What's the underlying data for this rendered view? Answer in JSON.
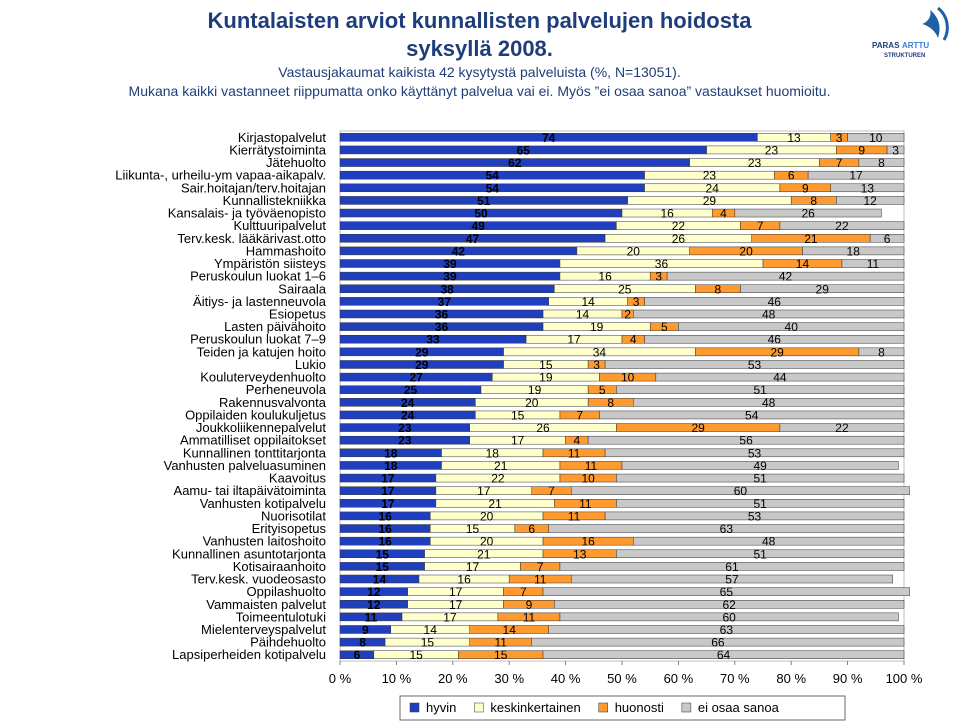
{
  "header": {
    "title_line1": "Kuntalaisten arviot kunnallisten palvelujen hoidosta",
    "title_line2": "syksyllä 2008.",
    "subtitle_line1": "Vastausjakaumat kaikista 42 kysytystä palveluista (%, N=13051).",
    "subtitle_line2": "Mukana kaikki vastanneet riippumatta onko käyttänyt palvelua vai ei. Myös ”ei osaa sanoa” vastaukset huomioitu."
  },
  "logo": {
    "text_paras": "PARAS",
    "text_arttu": "ARTTU",
    "text_rakenne": "STRUKTUREN"
  },
  "colors": {
    "hyvin": "#1f3fbf",
    "keskinkertainen": "#ffffcc",
    "huonosti": "#ff9a2e",
    "eos": "#c8c8c8"
  },
  "chart_data": {
    "type": "bar",
    "stacked": true,
    "orientation": "horizontal",
    "xlim": [
      0,
      100
    ],
    "x_ticks": [
      "0 %",
      "10 %",
      "20 %",
      "30 %",
      "40 %",
      "50 %",
      "60 %",
      "70 %",
      "80 %",
      "90 %",
      "100 %"
    ],
    "legend_position": "bottom",
    "categories": [
      "Kirjastopalvelut",
      "Kierrätystoiminta",
      "Jätehuolto",
      "Liikunta-, urheilu-ym vapaa-aikapalv.",
      "Sair.hoitajan/terv.hoitajan",
      "Kunnallistekniikka",
      "Kansalais- ja työväenopisto",
      "Kulttuuripalvelut",
      "Terv.kesk. lääkärivast.otto",
      "Hammashoito",
      "Ympäristön siisteys",
      "Peruskoulun luokat 1–6",
      "Sairaala",
      "Äitiys- ja lastenneuvola",
      "Esiopetus",
      "Lasten päivähoito",
      "Peruskoulun luokat 7–9",
      "Teiden ja katujen hoito",
      "Lukio",
      "Kouluterveydenhuolto",
      "Perheneuvola",
      "Rakennusvalvonta",
      "Oppilaiden koulukuljetus",
      "Joukkoliikennepalvelut",
      "Ammatilliset oppilaitokset",
      "Kunnallinen tonttitarjonta",
      "Vanhusten palveluasuminen",
      "Kaavoitus",
      "Aamu- tai iltapäivätoiminta",
      "Vanhusten kotipalvelu",
      "Nuorisotilat",
      "Erityisopetus",
      "Vanhusten laitoshoito",
      "Kunnallinen asuntotarjonta",
      "Kotisairaanhoito",
      "Terv.kesk. vuodeosasto",
      "Oppilashuolto",
      "Vammaisten palvelut",
      "Toimeentulotuki",
      "Mielenterveyspalvelut",
      "Päihdehuolto",
      "Lapsiperheiden kotipalvelu"
    ],
    "series": [
      {
        "name": "hyvin",
        "values": [
          74,
          65,
          62,
          54,
          54,
          51,
          50,
          49,
          47,
          42,
          39,
          39,
          38,
          37,
          36,
          36,
          33,
          29,
          29,
          27,
          25,
          24,
          24,
          23,
          23,
          18,
          18,
          17,
          17,
          17,
          16,
          16,
          16,
          15,
          15,
          14,
          12,
          12,
          11,
          9,
          8,
          6
        ]
      },
      {
        "name": "keskinkertainen",
        "values": [
          13,
          23,
          23,
          23,
          24,
          29,
          16,
          22,
          26,
          20,
          36,
          16,
          25,
          14,
          14,
          19,
          17,
          34,
          15,
          19,
          19,
          20,
          15,
          26,
          17,
          18,
          21,
          22,
          17,
          21,
          20,
          15,
          20,
          21,
          17,
          16,
          17,
          17,
          17,
          14,
          15,
          15
        ]
      },
      {
        "name": "huonosti",
        "values": [
          3,
          9,
          7,
          6,
          9,
          8,
          4,
          7,
          21,
          20,
          14,
          3,
          8,
          3,
          2,
          5,
          4,
          29,
          3,
          10,
          5,
          8,
          7,
          29,
          4,
          11,
          11,
          10,
          7,
          11,
          11,
          6,
          16,
          13,
          7,
          11,
          7,
          9,
          11,
          14,
          11,
          15
        ]
      },
      {
        "name": "ei osaa sanoa",
        "values": [
          10,
          3,
          8,
          17,
          13,
          12,
          26,
          22,
          6,
          18,
          11,
          42,
          29,
          46,
          48,
          40,
          46,
          8,
          53,
          44,
          51,
          48,
          54,
          22,
          56,
          53,
          49,
          51,
          60,
          51,
          53,
          63,
          48,
          51,
          61,
          57,
          65,
          62,
          60,
          63,
          66,
          64
        ]
      }
    ]
  }
}
